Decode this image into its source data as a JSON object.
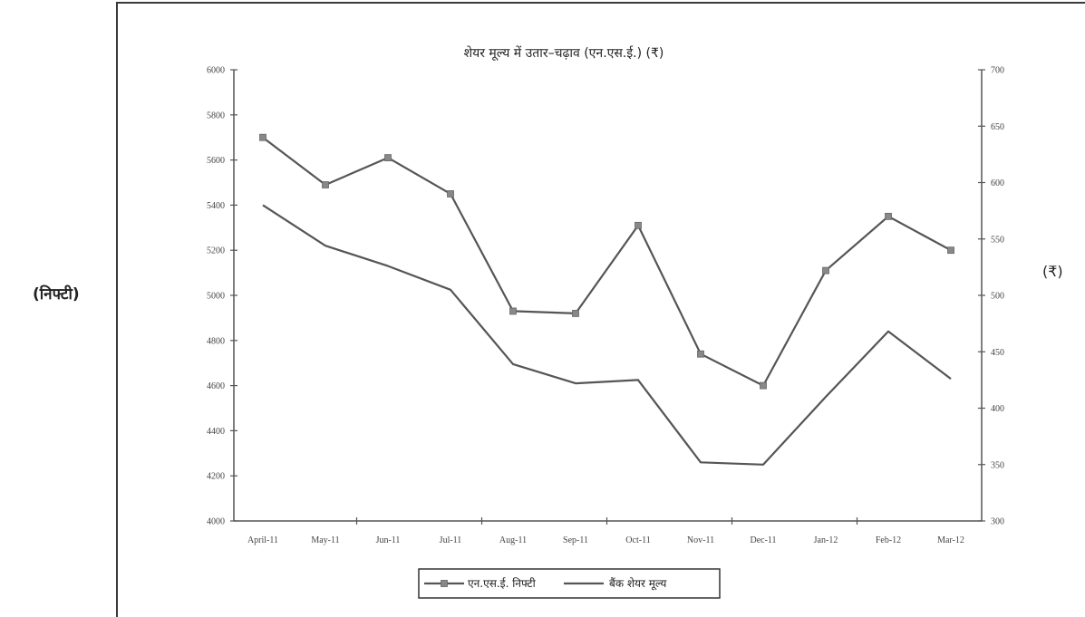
{
  "left_axis_unit": "(निफ्टी)",
  "right_axis_unit": "(₹)",
  "chart_data": {
    "type": "line",
    "title": "शेयर मूल्य में उतार–चढ़ाव (एन.एस.ई.) (₹)",
    "categories": [
      "April-11",
      "May-11",
      "Jun-11",
      "Jul-11",
      "Aug-11",
      "Sep-11",
      "Oct-11",
      "Nov-11",
      "Dec-11",
      "Jan-12",
      "Feb-12",
      "Mar-12"
    ],
    "left_axis": {
      "ylim": [
        4000,
        6000
      ],
      "ticks": [
        4000,
        4200,
        4400,
        4600,
        4800,
        5000,
        5200,
        5400,
        5600,
        5800,
        6000
      ]
    },
    "right_axis": {
      "ylim": [
        300,
        700
      ],
      "ticks": [
        300,
        350,
        400,
        450,
        500,
        550,
        600,
        650,
        700
      ]
    },
    "series": [
      {
        "name": "एन.एस.ई. निफ्टी",
        "axis": "left",
        "marker": "square",
        "values": [
          5700,
          5490,
          5610,
          5450,
          4930,
          4920,
          5310,
          4740,
          4600,
          5110,
          5350,
          5200
        ]
      },
      {
        "name": "बैंक शेयर मूल्य",
        "axis": "right",
        "marker": "none",
        "values": [
          580,
          544,
          526,
          505,
          439,
          422,
          425,
          352,
          350,
          410,
          468,
          426
        ]
      }
    ],
    "legend_position": "bottom-center",
    "grid": false,
    "colors": {
      "line": "#555555",
      "axis": "#555555",
      "text": "#222222"
    }
  }
}
